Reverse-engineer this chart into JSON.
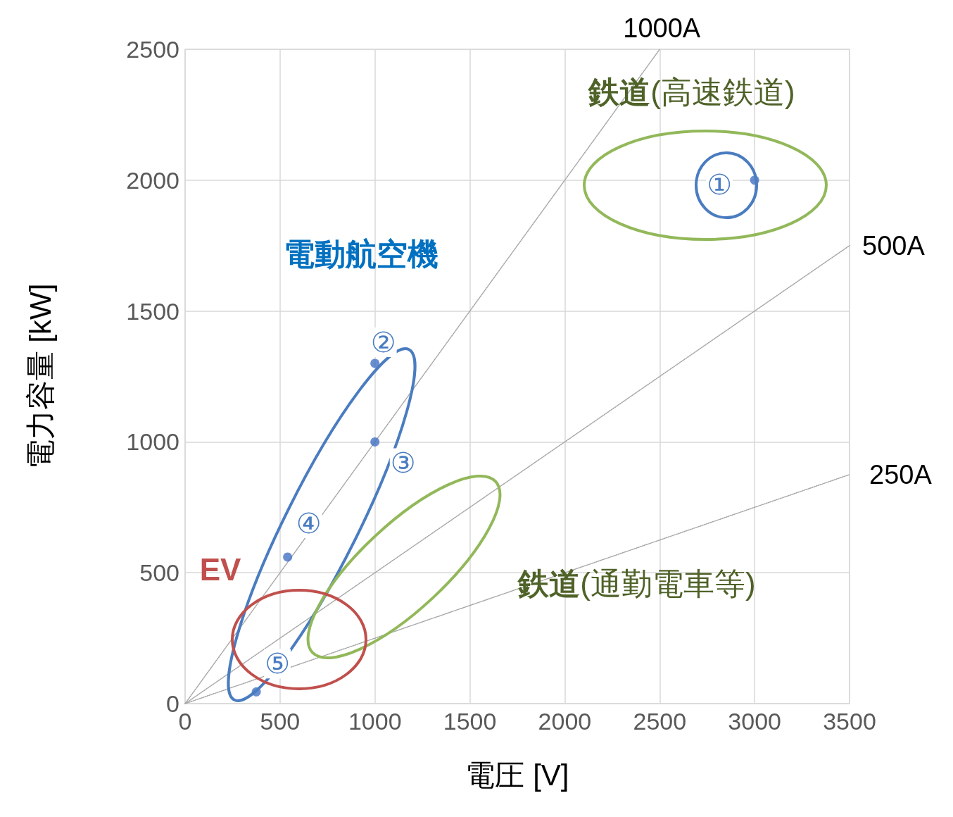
{
  "chart_data": {
    "type": "scatter",
    "xlabel": "電圧 [V]",
    "ylabel": "電力容量 [kW]",
    "xlim": [
      0,
      3500
    ],
    "ylim": [
      0,
      2500
    ],
    "xticks": [
      0,
      500,
      1000,
      1500,
      2000,
      2500,
      3000,
      3500
    ],
    "yticks": [
      0,
      500,
      1000,
      1500,
      2000,
      2500
    ],
    "grid": true,
    "marker": "circle",
    "series": [
      {
        "color": "#4472c4",
        "x": [
          3000,
          1000,
          1000,
          540,
          375
        ],
        "values": [
          2000,
          1300,
          1000,
          560,
          45
        ]
      },
      {
        "type": "line",
        "name": "1000A",
        "color": "#a6a6a6",
        "line_style": "dotted",
        "marker": "none",
        "x": [
          0,
          2500
        ],
        "values": [
          0,
          2500
        ]
      },
      {
        "type": "line",
        "name": "500A",
        "color": "#a6a6a6",
        "line_style": "dotted",
        "marker": "none",
        "x": [
          0,
          3500
        ],
        "values": [
          0,
          1750
        ]
      },
      {
        "type": "line",
        "name": "250A",
        "color": "#a6a6a6",
        "line_style": "dotted",
        "marker": "none",
        "x": [
          0,
          3500
        ],
        "values": [
          0,
          875
        ]
      }
    ],
    "annotations": [
      {
        "text": "①",
        "x": 3000,
        "y": 2000
      },
      {
        "text": "②",
        "x": 1000,
        "y": 1300
      },
      {
        "text": "③",
        "x": 1000,
        "y": 1000
      },
      {
        "text": "④",
        "x": 540,
        "y": 560
      },
      {
        "text": "⑤",
        "x": 375,
        "y": 45
      },
      "鉄道(高速鉄道)",
      "電動航空機",
      "鉄道(通勤電車等)",
      "EV"
    ]
  }
}
